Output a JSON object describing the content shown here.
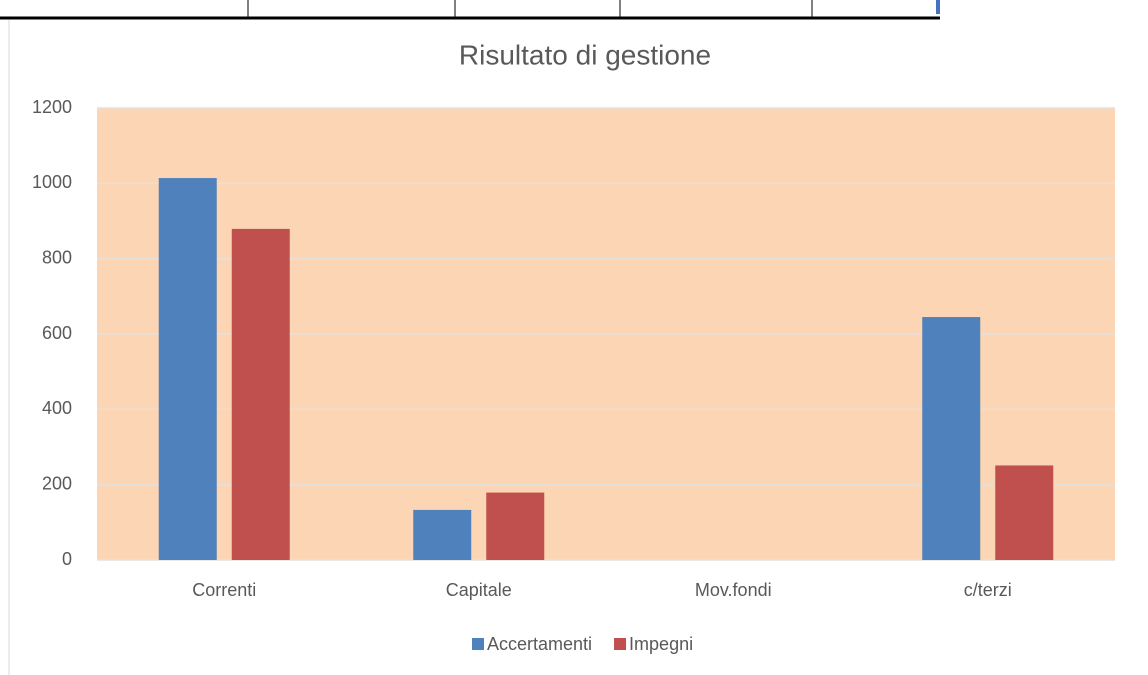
{
  "chart_data": {
    "type": "bar",
    "title": "Risultato di gestione",
    "categories": [
      "Correnti",
      "Capitale",
      "Mov.fondi",
      "c/terzi"
    ],
    "series": [
      {
        "name": "Accertamenti",
        "color": "#4f81bd",
        "values": [
          1014,
          133,
          0,
          645
        ]
      },
      {
        "name": "Impegni",
        "color": "#c0504d",
        "values": [
          879,
          179,
          0,
          251
        ]
      }
    ],
    "ylim": [
      0,
      1200
    ],
    "yticks": [
      0,
      200,
      400,
      600,
      800,
      1000,
      1200
    ],
    "grid": true,
    "legend": "bottom",
    "plot_background": "#fcd5b4"
  }
}
